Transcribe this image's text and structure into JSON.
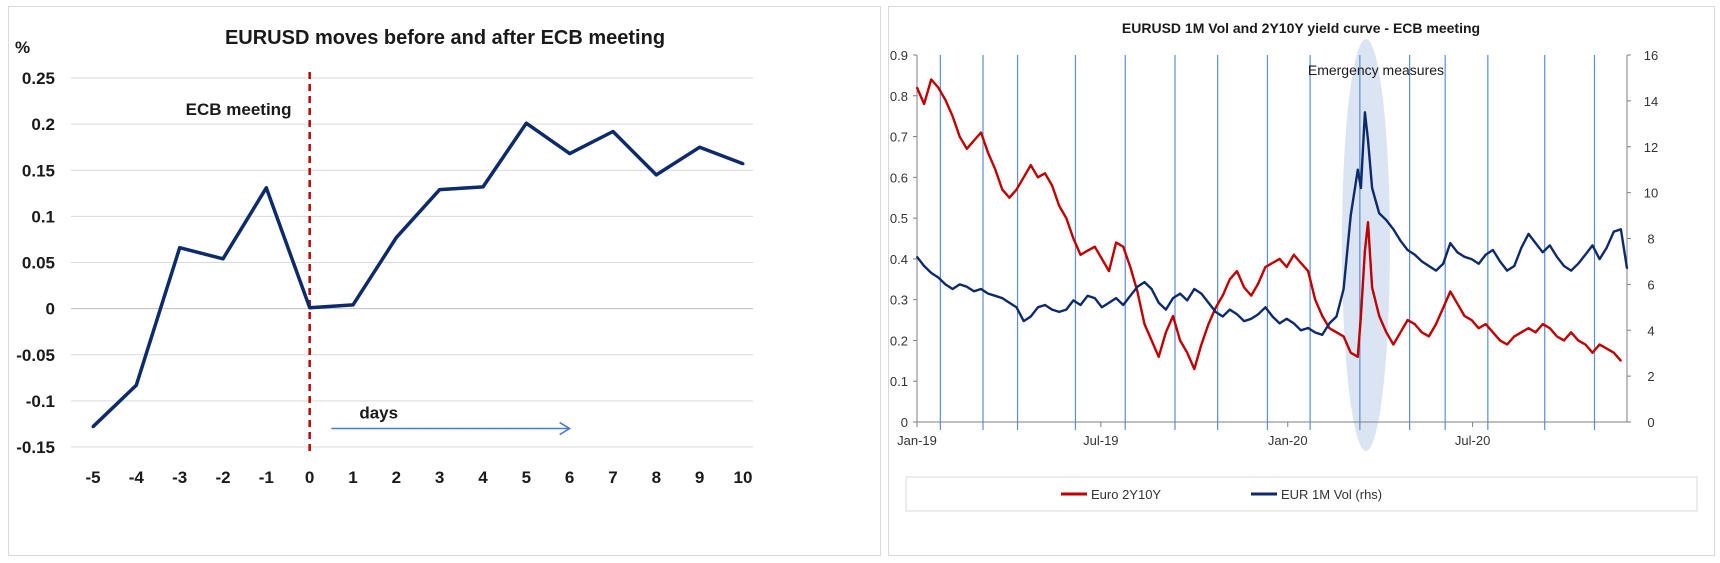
{
  "chart_data": [
    {
      "type": "line",
      "title": "EURUSD moves before and after ECB meeting",
      "ylabel": "%",
      "xlabel": "",
      "x": [
        -5,
        -4,
        -3,
        -2,
        -1,
        0,
        1,
        2,
        3,
        4,
        5,
        6,
        7,
        8,
        9,
        10
      ],
      "x_tick_labels": [
        "-5",
        "-4",
        "-3",
        "-2",
        "-1",
        "0",
        "1",
        "2",
        "3",
        "4",
        "5",
        "6",
        "7",
        "8",
        "9",
        "10"
      ],
      "ylim": [
        -0.15,
        0.25
      ],
      "y_tick_labels": [
        "-0.15",
        "-0.1",
        "-0.05",
        "0",
        "0.05",
        "0.1",
        "0.15",
        "0.2",
        "0.25"
      ],
      "grid": true,
      "series": [
        {
          "values": [
            -0.128,
            -0.083,
            0.066,
            0.054,
            0.131,
            0.001,
            0.004,
            0.077,
            0.129,
            0.132,
            0.201,
            0.168,
            0.192,
            0.145,
            0.175,
            0.157
          ],
          "color": "#0d2a6b"
        }
      ],
      "annotations": {
        "event_line": {
          "x": 0,
          "label": "ECB meeting",
          "color": "#c00000"
        },
        "arrow": {
          "label": "days",
          "from_x": 0.5,
          "to_x": 6,
          "y": -0.13,
          "color": "#4a7ac8"
        }
      }
    },
    {
      "type": "line",
      "title": "EURUSD 1M Vol and 2Y10Y yield curve - ECB meeting",
      "ylim": [
        0,
        0.9
      ],
      "y_tick_labels": [
        "0",
        "0.1",
        "0.2",
        "0.3",
        "0.4",
        "0.5",
        "0.6",
        "0.7",
        "0.8",
        "0.9"
      ],
      "y2lim": [
        0,
        16
      ],
      "y2_tick_labels": [
        "0",
        "2",
        "4",
        "6",
        "8",
        "10",
        "12",
        "14",
        "16"
      ],
      "xlim": [
        "2019-01-01",
        "2020-11-30"
      ],
      "x_tick_labels": [
        "Jan-19",
        "Jul-19",
        "Jan-20",
        "Jul-20"
      ],
      "x_tick_dates": [
        "2019-01-01",
        "2019-07-01",
        "2020-01-01",
        "2020-07-01"
      ],
      "ecb_meetings": [
        "2019-01-24",
        "2019-03-07",
        "2019-04-10",
        "2019-06-06",
        "2019-07-25",
        "2019-09-12",
        "2019-10-24",
        "2019-12-12",
        "2020-01-23",
        "2020-03-12",
        "2020-04-30",
        "2020-06-04",
        "2020-07-16",
        "2020-09-10",
        "2020-10-29"
      ],
      "highlight": {
        "label": "Emergency measures",
        "center_date": "2020-03-18",
        "color": "#dbe4f3"
      },
      "legend_position": "bottom",
      "series": [
        {
          "name": "Euro 2Y10Y",
          "axis": "left",
          "color": "#c00000",
          "points": [
            [
              "2019-01-01",
              0.82
            ],
            [
              "2019-01-08",
              0.78
            ],
            [
              "2019-01-15",
              0.84
            ],
            [
              "2019-01-22",
              0.82
            ],
            [
              "2019-01-29",
              0.79
            ],
            [
              "2019-02-05",
              0.75
            ],
            [
              "2019-02-12",
              0.7
            ],
            [
              "2019-02-19",
              0.67
            ],
            [
              "2019-02-26",
              0.69
            ],
            [
              "2019-03-05",
              0.71
            ],
            [
              "2019-03-12",
              0.66
            ],
            [
              "2019-03-19",
              0.62
            ],
            [
              "2019-03-26",
              0.57
            ],
            [
              "2019-04-02",
              0.55
            ],
            [
              "2019-04-09",
              0.57
            ],
            [
              "2019-04-16",
              0.6
            ],
            [
              "2019-04-23",
              0.63
            ],
            [
              "2019-04-30",
              0.6
            ],
            [
              "2019-05-07",
              0.61
            ],
            [
              "2019-05-14",
              0.58
            ],
            [
              "2019-05-21",
              0.53
            ],
            [
              "2019-05-28",
              0.5
            ],
            [
              "2019-06-04",
              0.45
            ],
            [
              "2019-06-11",
              0.41
            ],
            [
              "2019-06-18",
              0.42
            ],
            [
              "2019-06-25",
              0.43
            ],
            [
              "2019-07-02",
              0.4
            ],
            [
              "2019-07-09",
              0.37
            ],
            [
              "2019-07-16",
              0.44
            ],
            [
              "2019-07-23",
              0.43
            ],
            [
              "2019-07-30",
              0.38
            ],
            [
              "2019-08-06",
              0.32
            ],
            [
              "2019-08-13",
              0.24
            ],
            [
              "2019-08-20",
              0.2
            ],
            [
              "2019-08-27",
              0.16
            ],
            [
              "2019-09-03",
              0.22
            ],
            [
              "2019-09-10",
              0.26
            ],
            [
              "2019-09-17",
              0.2
            ],
            [
              "2019-09-24",
              0.17
            ],
            [
              "2019-10-01",
              0.13
            ],
            [
              "2019-10-08",
              0.19
            ],
            [
              "2019-10-15",
              0.24
            ],
            [
              "2019-10-22",
              0.28
            ],
            [
              "2019-10-29",
              0.31
            ],
            [
              "2019-11-05",
              0.35
            ],
            [
              "2019-11-12",
              0.37
            ],
            [
              "2019-11-19",
              0.33
            ],
            [
              "2019-11-26",
              0.31
            ],
            [
              "2019-12-03",
              0.34
            ],
            [
              "2019-12-10",
              0.38
            ],
            [
              "2019-12-17",
              0.39
            ],
            [
              "2019-12-24",
              0.4
            ],
            [
              "2019-12-31",
              0.38
            ],
            [
              "2020-01-07",
              0.41
            ],
            [
              "2020-01-14",
              0.39
            ],
            [
              "2020-01-21",
              0.37
            ],
            [
              "2020-01-28",
              0.3
            ],
            [
              "2020-02-04",
              0.26
            ],
            [
              "2020-02-11",
              0.23
            ],
            [
              "2020-02-18",
              0.22
            ],
            [
              "2020-02-25",
              0.21
            ],
            [
              "2020-03-03",
              0.17
            ],
            [
              "2020-03-10",
              0.16
            ],
            [
              "2020-03-13",
              0.26
            ],
            [
              "2020-03-17",
              0.42
            ],
            [
              "2020-03-20",
              0.49
            ],
            [
              "2020-03-24",
              0.33
            ],
            [
              "2020-03-31",
              0.26
            ],
            [
              "2020-04-07",
              0.22
            ],
            [
              "2020-04-14",
              0.19
            ],
            [
              "2020-04-21",
              0.22
            ],
            [
              "2020-04-28",
              0.25
            ],
            [
              "2020-05-05",
              0.24
            ],
            [
              "2020-05-12",
              0.22
            ],
            [
              "2020-05-19",
              0.21
            ],
            [
              "2020-05-26",
              0.24
            ],
            [
              "2020-06-02",
              0.28
            ],
            [
              "2020-06-09",
              0.32
            ],
            [
              "2020-06-16",
              0.29
            ],
            [
              "2020-06-23",
              0.26
            ],
            [
              "2020-06-30",
              0.25
            ],
            [
              "2020-07-07",
              0.23
            ],
            [
              "2020-07-14",
              0.24
            ],
            [
              "2020-07-21",
              0.22
            ],
            [
              "2020-07-28",
              0.2
            ],
            [
              "2020-08-04",
              0.19
            ],
            [
              "2020-08-11",
              0.21
            ],
            [
              "2020-08-18",
              0.22
            ],
            [
              "2020-08-25",
              0.23
            ],
            [
              "2020-09-01",
              0.22
            ],
            [
              "2020-09-08",
              0.24
            ],
            [
              "2020-09-15",
              0.23
            ],
            [
              "2020-09-22",
              0.21
            ],
            [
              "2020-09-29",
              0.2
            ],
            [
              "2020-10-06",
              0.22
            ],
            [
              "2020-10-13",
              0.2
            ],
            [
              "2020-10-20",
              0.19
            ],
            [
              "2020-10-27",
              0.17
            ],
            [
              "2020-11-03",
              0.19
            ],
            [
              "2020-11-10",
              0.18
            ],
            [
              "2020-11-17",
              0.17
            ],
            [
              "2020-11-24",
              0.15
            ]
          ]
        },
        {
          "name": "EUR 1M Vol (rhs)",
          "axis": "right",
          "color": "#0d2a6b",
          "points": [
            [
              "2019-01-01",
              7.2
            ],
            [
              "2019-01-08",
              6.8
            ],
            [
              "2019-01-15",
              6.5
            ],
            [
              "2019-01-22",
              6.3
            ],
            [
              "2019-01-29",
              6.0
            ],
            [
              "2019-02-05",
              5.8
            ],
            [
              "2019-02-12",
              6.0
            ],
            [
              "2019-02-19",
              5.9
            ],
            [
              "2019-02-26",
              5.7
            ],
            [
              "2019-03-05",
              5.8
            ],
            [
              "2019-03-12",
              5.6
            ],
            [
              "2019-03-19",
              5.5
            ],
            [
              "2019-03-26",
              5.4
            ],
            [
              "2019-04-02",
              5.2
            ],
            [
              "2019-04-09",
              5.0
            ],
            [
              "2019-04-16",
              4.4
            ],
            [
              "2019-04-23",
              4.6
            ],
            [
              "2019-04-30",
              5.0
            ],
            [
              "2019-05-07",
              5.1
            ],
            [
              "2019-05-14",
              4.9
            ],
            [
              "2019-05-21",
              4.8
            ],
            [
              "2019-05-28",
              4.9
            ],
            [
              "2019-06-04",
              5.3
            ],
            [
              "2019-06-11",
              5.1
            ],
            [
              "2019-06-18",
              5.5
            ],
            [
              "2019-06-25",
              5.4
            ],
            [
              "2019-07-02",
              5.0
            ],
            [
              "2019-07-09",
              5.2
            ],
            [
              "2019-07-16",
              5.4
            ],
            [
              "2019-07-23",
              5.1
            ],
            [
              "2019-07-30",
              5.5
            ],
            [
              "2019-08-06",
              5.9
            ],
            [
              "2019-08-13",
              6.1
            ],
            [
              "2019-08-20",
              5.8
            ],
            [
              "2019-08-27",
              5.2
            ],
            [
              "2019-09-03",
              4.9
            ],
            [
              "2019-09-10",
              5.4
            ],
            [
              "2019-09-17",
              5.6
            ],
            [
              "2019-09-24",
              5.3
            ],
            [
              "2019-10-01",
              5.8
            ],
            [
              "2019-10-08",
              5.6
            ],
            [
              "2019-10-15",
              5.2
            ],
            [
              "2019-10-22",
              4.8
            ],
            [
              "2019-10-29",
              4.6
            ],
            [
              "2019-11-05",
              4.9
            ],
            [
              "2019-11-12",
              4.7
            ],
            [
              "2019-11-19",
              4.4
            ],
            [
              "2019-11-26",
              4.5
            ],
            [
              "2019-12-03",
              4.7
            ],
            [
              "2019-12-10",
              5.0
            ],
            [
              "2019-12-17",
              4.6
            ],
            [
              "2019-12-24",
              4.3
            ],
            [
              "2019-12-31",
              4.5
            ],
            [
              "2020-01-07",
              4.3
            ],
            [
              "2020-01-14",
              4.0
            ],
            [
              "2020-01-21",
              4.1
            ],
            [
              "2020-01-28",
              3.9
            ],
            [
              "2020-02-04",
              3.8
            ],
            [
              "2020-02-11",
              4.3
            ],
            [
              "2020-02-18",
              4.6
            ],
            [
              "2020-02-25",
              5.8
            ],
            [
              "2020-03-03",
              9.0
            ],
            [
              "2020-03-10",
              11.0
            ],
            [
              "2020-03-13",
              10.2
            ],
            [
              "2020-03-17",
              13.5
            ],
            [
              "2020-03-20",
              12.3
            ],
            [
              "2020-03-24",
              10.2
            ],
            [
              "2020-03-31",
              9.1
            ],
            [
              "2020-04-07",
              8.8
            ],
            [
              "2020-04-14",
              8.4
            ],
            [
              "2020-04-21",
              7.9
            ],
            [
              "2020-04-28",
              7.5
            ],
            [
              "2020-05-05",
              7.3
            ],
            [
              "2020-05-12",
              7.0
            ],
            [
              "2020-05-19",
              6.8
            ],
            [
              "2020-05-26",
              6.6
            ],
            [
              "2020-06-02",
              6.9
            ],
            [
              "2020-06-09",
              7.8
            ],
            [
              "2020-06-16",
              7.4
            ],
            [
              "2020-06-23",
              7.2
            ],
            [
              "2020-06-30",
              7.1
            ],
            [
              "2020-07-07",
              6.9
            ],
            [
              "2020-07-14",
              7.3
            ],
            [
              "2020-07-21",
              7.5
            ],
            [
              "2020-07-28",
              7.0
            ],
            [
              "2020-08-04",
              6.6
            ],
            [
              "2020-08-11",
              6.8
            ],
            [
              "2020-08-18",
              7.6
            ],
            [
              "2020-08-25",
              8.2
            ],
            [
              "2020-09-01",
              7.8
            ],
            [
              "2020-09-08",
              7.4
            ],
            [
              "2020-09-15",
              7.7
            ],
            [
              "2020-09-22",
              7.2
            ],
            [
              "2020-09-29",
              6.8
            ],
            [
              "2020-10-06",
              6.6
            ],
            [
              "2020-10-13",
              6.9
            ],
            [
              "2020-10-20",
              7.3
            ],
            [
              "2020-10-27",
              7.7
            ],
            [
              "2020-11-03",
              7.1
            ],
            [
              "2020-11-10",
              7.6
            ],
            [
              "2020-11-17",
              8.3
            ],
            [
              "2020-11-24",
              8.4
            ],
            [
              "2020-11-30",
              6.7
            ]
          ]
        }
      ]
    }
  ]
}
